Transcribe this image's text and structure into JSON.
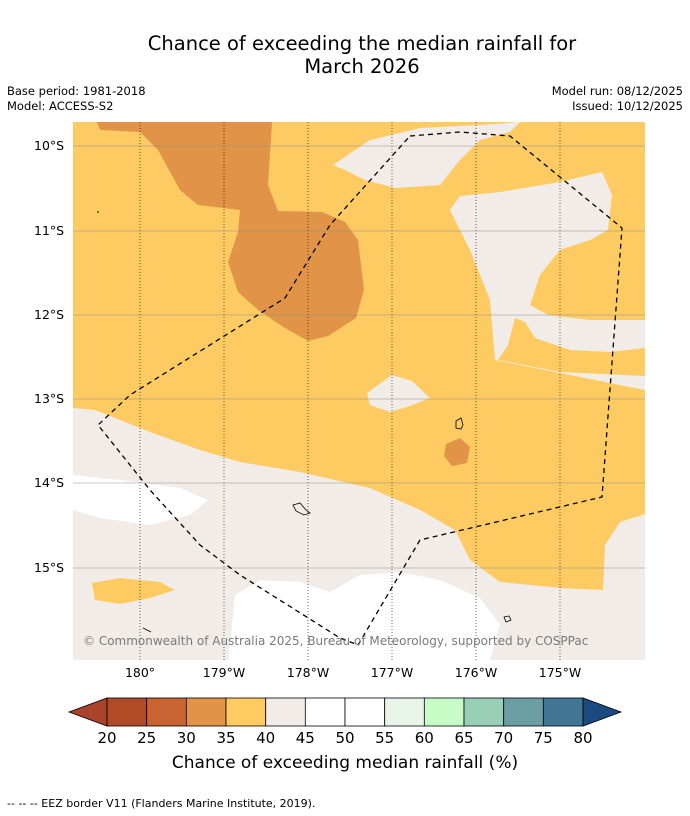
{
  "title_line1": "Chance of exceeding the median rainfall for",
  "title_line2": "March 2026",
  "base_period": "Base period: 1981-2018",
  "model": "Model: ACCESS-S2",
  "model_run": "Model run: 08/12/2025",
  "issued": "Issued: 10/12/2025",
  "map": {
    "lat_labels": [
      "10°S",
      "11°S",
      "12°S",
      "13°S",
      "14°S",
      "15°S"
    ],
    "lon_labels": [
      "180°",
      "179°W",
      "178°W",
      "177°W",
      "176°W",
      "175°W"
    ],
    "copyright": "© Commonwealth of Australia 2025, Bureau of Meteorology, supported by COSPPac",
    "eez_line": "dashed"
  },
  "colorbar": {
    "ticks": [
      "20",
      "25",
      "30",
      "35",
      "40",
      "45",
      "50",
      "55",
      "60",
      "65",
      "70",
      "75",
      "80"
    ],
    "colors": [
      "#a9442a",
      "#b04a27",
      "#c96432",
      "#e19447",
      "#fecb63",
      "#f1ece7",
      "#ffffff",
      "#ffffff",
      "#eaf5ea",
      "#c8fcc7",
      "#9acfb7",
      "#6a9ea4",
      "#417695",
      "#1a4a80"
    ],
    "title": "Chance of exceeding median rainfall (%)"
  },
  "footnote": "--  --  -- EEZ border V11 (Flanders Marine Institute, 2019)."
}
